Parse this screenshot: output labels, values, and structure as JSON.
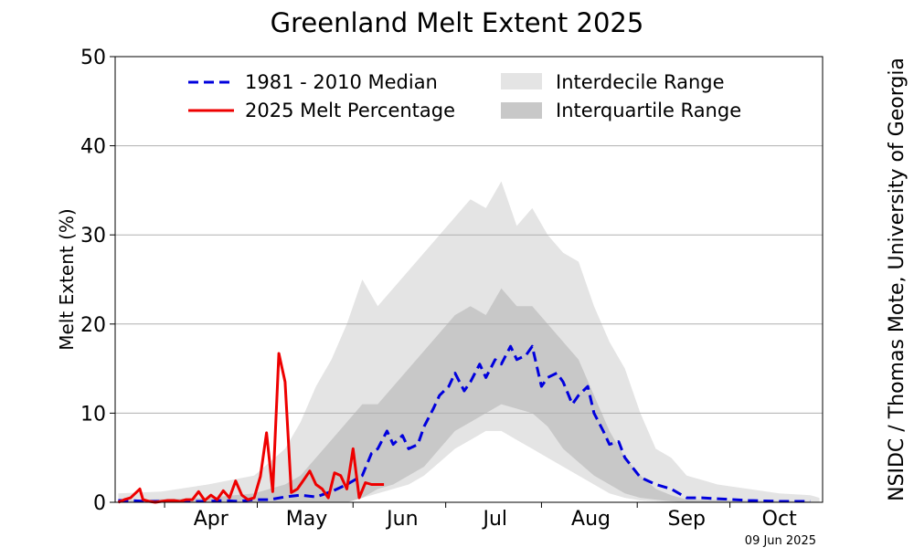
{
  "chart_data": {
    "type": "line",
    "title": "Greenland Melt Extent 2025",
    "ylabel": "Melt Extent (%)",
    "xlabel": "",
    "ylim": [
      0,
      50
    ],
    "yticks": [
      0,
      10,
      20,
      30,
      40,
      50
    ],
    "xticks": [
      "Apr",
      "May",
      "Jun",
      "Jul",
      "Aug",
      "Sep",
      "Oct"
    ],
    "grid": "horizontal",
    "legend_position": "top",
    "date_stamp": "09 Jun 2025",
    "credit": "NSIDC / Thomas Mote, University of Georgia",
    "x_units": "day of year",
    "xlim": [
      75,
      304
    ],
    "month_label_days": [
      106,
      137,
      168,
      198,
      229,
      260,
      290
    ],
    "month_boundary_days": [
      91,
      121,
      152,
      182,
      213,
      244,
      274
    ],
    "colors": {
      "median": "#0000dd",
      "melt_2025": "#ee0000",
      "interdecile": "#e4e4e4",
      "interquartile": "#c8c8c8",
      "grid": "#b0b0b0"
    },
    "series": [
      {
        "name": "1981 - 2010 Median",
        "style": "dashed",
        "x": [
          76,
          80,
          85,
          90,
          95,
          100,
          105,
          110,
          115,
          120,
          125,
          130,
          135,
          140,
          145,
          150,
          155,
          158,
          160,
          163,
          165,
          168,
          170,
          173,
          175,
          178,
          180,
          183,
          185,
          188,
          190,
          193,
          195,
          198,
          200,
          203,
          205,
          208,
          210,
          213,
          215,
          218,
          220,
          223,
          225,
          228,
          230,
          233,
          235,
          238,
          240,
          245,
          250,
          255,
          260,
          265,
          270,
          280,
          290,
          300
        ],
        "y": [
          0.2,
          0.2,
          0.1,
          0.1,
          0.1,
          0.1,
          0.1,
          0.2,
          0.1,
          0.3,
          0.3,
          0.6,
          0.8,
          0.6,
          1.2,
          2.0,
          3.0,
          5.5,
          6.0,
          8.0,
          6.5,
          7.5,
          6.0,
          6.5,
          8.5,
          10.5,
          12.0,
          13.0,
          14.5,
          12.5,
          13.5,
          15.5,
          14.0,
          16.0,
          15.5,
          17.5,
          16.0,
          16.5,
          17.5,
          13.0,
          14.0,
          14.5,
          13.5,
          11.0,
          12.0,
          13.0,
          10.0,
          8.0,
          6.5,
          6.8,
          5.0,
          2.8,
          2.0,
          1.5,
          0.5,
          0.5,
          0.4,
          0.2,
          0.1,
          0.1
        ]
      },
      {
        "name": "2025 Melt Percentage",
        "style": "solid",
        "x": [
          76,
          78,
          80,
          83,
          84,
          86,
          88,
          90,
          92,
          94,
          96,
          98,
          100,
          102,
          104,
          106,
          108,
          110,
          112,
          114,
          116,
          118,
          120,
          122,
          124,
          126,
          128,
          130,
          132,
          134,
          136,
          138,
          140,
          142,
          144,
          146,
          148,
          150,
          152,
          154,
          156,
          158,
          160,
          162
        ],
        "y": [
          0,
          0.3,
          0.5,
          1.5,
          0.3,
          0.1,
          0,
          0.1,
          0.2,
          0.2,
          0.1,
          0.3,
          0.3,
          1.2,
          0.2,
          0.8,
          0.3,
          1.3,
          0.5,
          2.4,
          0.8,
          0.3,
          0.5,
          2.9,
          7.8,
          1.2,
          16.7,
          13.5,
          1.1,
          1.5,
          2.5,
          3.5,
          2.0,
          1.5,
          0.5,
          3.3,
          3.0,
          1.5,
          6.0,
          0.5,
          2.2,
          2.0,
          2.0,
          2.0
        ]
      }
    ],
    "bands": [
      {
        "name": "Interdecile Range",
        "x": [
          76,
          90,
          105,
          120,
          130,
          135,
          140,
          145,
          150,
          155,
          160,
          165,
          170,
          175,
          180,
          185,
          190,
          195,
          200,
          205,
          210,
          215,
          220,
          225,
          230,
          235,
          240,
          245,
          250,
          255,
          260,
          270,
          280,
          290,
          300,
          303
        ],
        "low": [
          0,
          0,
          0,
          0,
          0,
          0,
          0,
          0,
          0,
          0.5,
          1.0,
          1.5,
          2.0,
          3.0,
          4.5,
          6.0,
          7.0,
          8.0,
          8.0,
          7.0,
          6.0,
          5.0,
          4.0,
          3.0,
          2.0,
          1.0,
          0.5,
          0.2,
          0.1,
          0,
          0,
          0,
          0,
          0,
          0,
          0
        ],
        "high": [
          1.0,
          1.2,
          2.0,
          3.0,
          6.0,
          9.0,
          13.0,
          16.0,
          20.0,
          25.0,
          22.0,
          24.0,
          26.0,
          28.0,
          30.0,
          32.0,
          34.0,
          33.0,
          36.0,
          31.0,
          33.0,
          30.0,
          28.0,
          27.0,
          22.0,
          18.0,
          15.0,
          10.0,
          6.0,
          5.0,
          3.0,
          2.0,
          1.5,
          1.0,
          0.8,
          0.5
        ]
      },
      {
        "name": "Interquartile Range",
        "x": [
          76,
          105,
          120,
          130,
          135,
          140,
          145,
          150,
          155,
          160,
          165,
          170,
          175,
          180,
          185,
          190,
          195,
          200,
          205,
          210,
          215,
          220,
          225,
          230,
          235,
          240,
          245,
          250,
          255,
          260,
          300
        ],
        "low": [
          0,
          0,
          0,
          0,
          0,
          0,
          0,
          0,
          0.5,
          1.5,
          2.0,
          3.0,
          4.0,
          6.0,
          8.0,
          9.0,
          10.0,
          11.0,
          10.5,
          10.0,
          8.5,
          6.0,
          4.5,
          3.0,
          2.0,
          1.0,
          0.5,
          0.3,
          0.1,
          0,
          0
        ],
        "high": [
          0.2,
          0.5,
          1.0,
          2.0,
          3.0,
          5.0,
          7.0,
          9.0,
          11.0,
          11.0,
          13.0,
          15.0,
          17.0,
          19.0,
          21.0,
          22.0,
          21.0,
          24.0,
          22.0,
          22.0,
          20.0,
          18.0,
          16.0,
          12.0,
          8.0,
          5.0,
          3.0,
          1.5,
          0.8,
          0.3,
          0.1
        ]
      }
    ]
  }
}
